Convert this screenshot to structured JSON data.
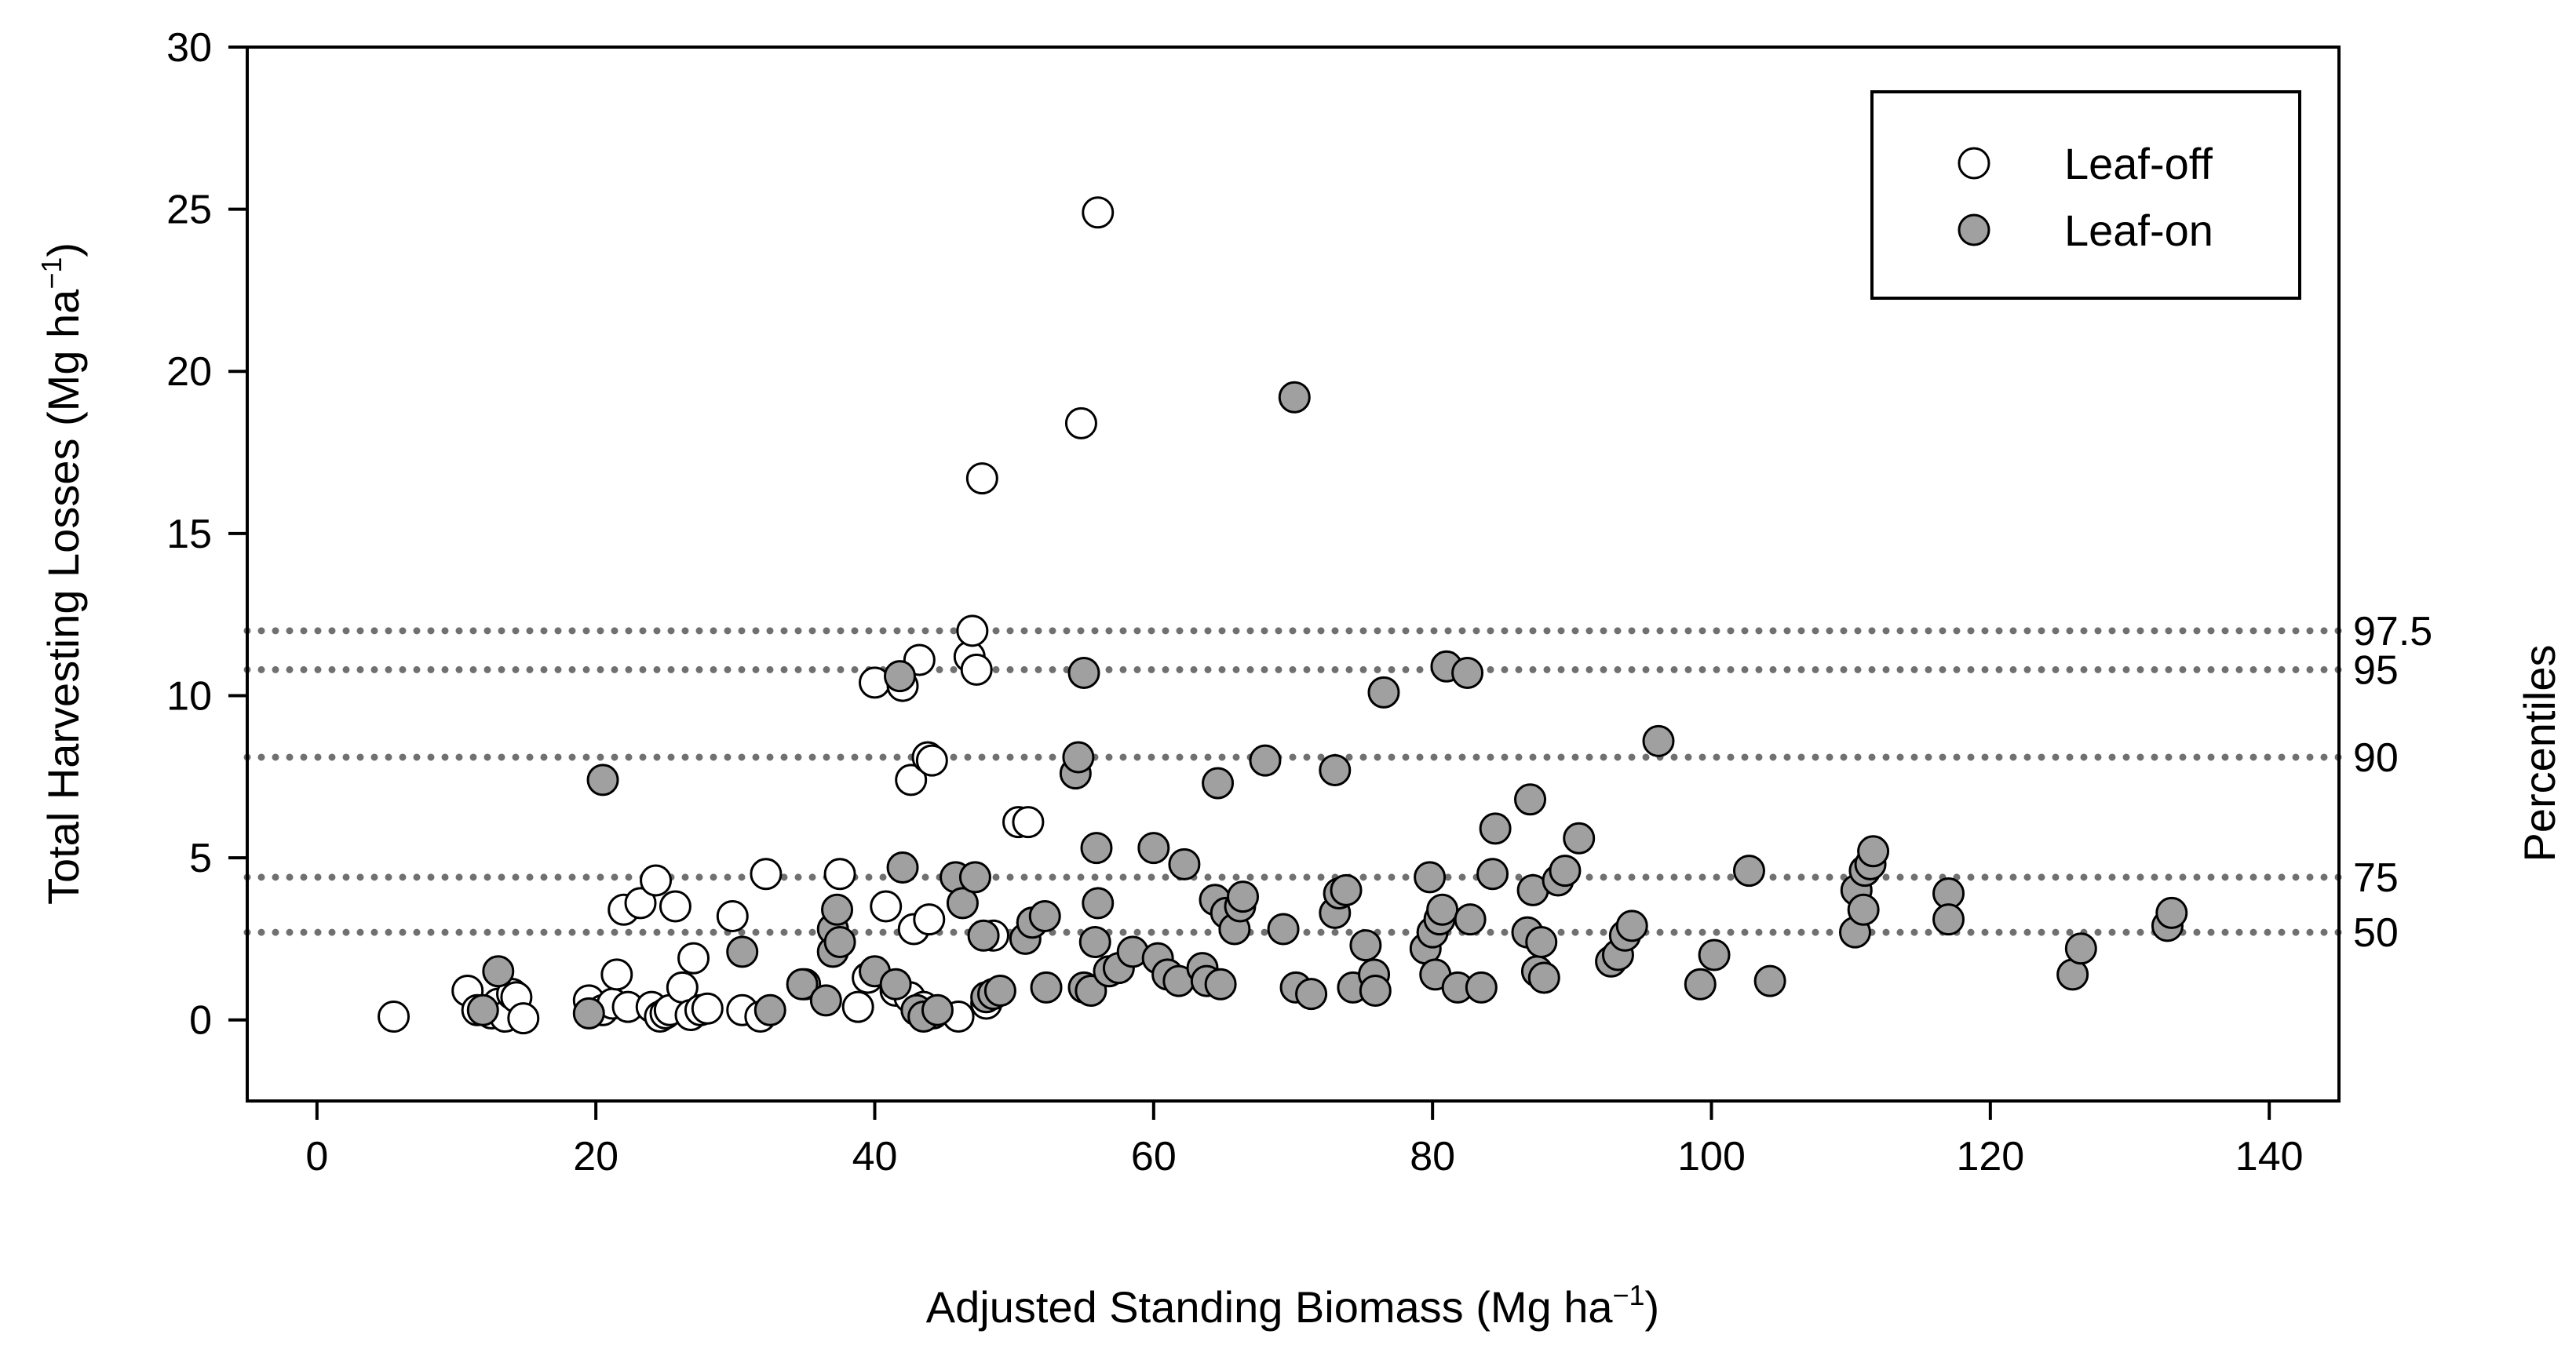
{
  "chart_data": {
    "type": "scatter",
    "title": "",
    "xlabel": "Adjusted Standing Biomass (Mg ha",
    "xlabel_sup": "−1",
    "xlabel_end": ")",
    "ylabel": "Total Harvesting Losses (Mg ha",
    "ylabel_sup": "−1",
    "ylabel_end": ")",
    "right_label": "Percentiles",
    "xlim": [
      -5,
      145
    ],
    "ylim": [
      -2.5,
      30
    ],
    "xticks": [
      0,
      20,
      40,
      60,
      80,
      100,
      120,
      140
    ],
    "yticks": [
      0,
      5,
      10,
      15,
      20,
      25,
      30
    ],
    "xtick_labels": [
      "0",
      "20",
      "40",
      "60",
      "80",
      "100",
      "120",
      "140"
    ],
    "ytick_labels": [
      "0",
      "5",
      "10",
      "15",
      "20",
      "25",
      "30"
    ],
    "legend_position": "top-right",
    "percentiles": [
      {
        "label": "97.5",
        "value": 12.0
      },
      {
        "label": "95",
        "value": 10.8
      },
      {
        "label": "90",
        "value": 8.1
      },
      {
        "label": "75",
        "value": 4.4
      },
      {
        "label": "50",
        "value": 2.7
      }
    ],
    "colors": {
      "leaf_off_fill": "#ffffff",
      "leaf_on_fill": "#a0a0a0",
      "marker_stroke": "#000000",
      "percentile_line": "#707070",
      "axis": "#000000"
    },
    "series": [
      {
        "name": "Leaf-off",
        "legend_label": "Leaf-off",
        "fill": "leaf_off_fill",
        "points": [
          [
            5.5,
            0.1
          ],
          [
            10.8,
            0.9
          ],
          [
            11.5,
            0.3
          ],
          [
            12.5,
            0.2
          ],
          [
            13.0,
            0.5
          ],
          [
            13.5,
            0.1
          ],
          [
            14.0,
            0.8
          ],
          [
            14.3,
            0.7
          ],
          [
            14.8,
            0.05
          ],
          [
            19.5,
            0.6
          ],
          [
            20.5,
            0.3
          ],
          [
            21.2,
            0.5
          ],
          [
            21.5,
            1.4
          ],
          [
            22.0,
            3.4
          ],
          [
            22.3,
            0.4
          ],
          [
            23.2,
            3.6
          ],
          [
            24.0,
            0.4
          ],
          [
            24.3,
            4.3
          ],
          [
            24.6,
            0.1
          ],
          [
            25.0,
            0.2
          ],
          [
            25.3,
            0.3
          ],
          [
            25.7,
            3.5
          ],
          [
            26.2,
            1.0
          ],
          [
            26.8,
            0.15
          ],
          [
            27.0,
            1.9
          ],
          [
            27.5,
            0.3
          ],
          [
            28.0,
            0.35
          ],
          [
            29.8,
            3.2
          ],
          [
            30.5,
            0.3
          ],
          [
            31.8,
            0.1
          ],
          [
            32.2,
            4.5
          ],
          [
            35.0,
            1.1
          ],
          [
            37.5,
            4.5
          ],
          [
            38.8,
            0.4
          ],
          [
            39.5,
            1.3
          ],
          [
            40.0,
            10.4
          ],
          [
            40.8,
            3.5
          ],
          [
            41.5,
            0.9
          ],
          [
            42.0,
            10.3
          ],
          [
            42.5,
            0.7
          ],
          [
            42.6,
            7.4
          ],
          [
            42.8,
            2.8
          ],
          [
            43.2,
            11.1
          ],
          [
            43.5,
            0.4
          ],
          [
            43.8,
            8.1
          ],
          [
            43.9,
            3.1
          ],
          [
            44.1,
            8.0
          ],
          [
            44.2,
            0.2
          ],
          [
            46.0,
            0.1
          ],
          [
            46.8,
            11.2
          ],
          [
            47.0,
            12.0
          ],
          [
            47.3,
            10.8
          ],
          [
            47.7,
            16.7
          ],
          [
            48.0,
            0.5
          ],
          [
            48.5,
            2.6
          ],
          [
            50.3,
            6.1
          ],
          [
            51.0,
            6.1
          ],
          [
            51.3,
            3.0
          ],
          [
            54.8,
            18.4
          ],
          [
            56.0,
            24.9
          ]
        ]
      },
      {
        "name": "Leaf-on",
        "legend_label": "Leaf-on",
        "fill": "leaf_on_fill",
        "points": [
          [
            11.9,
            0.3
          ],
          [
            13.0,
            1.5
          ],
          [
            19.5,
            0.2
          ],
          [
            20.5,
            7.4
          ],
          [
            30.5,
            2.1
          ],
          [
            32.5,
            0.3
          ],
          [
            34.8,
            1.1
          ],
          [
            36.5,
            0.6
          ],
          [
            37.0,
            2.1
          ],
          [
            37.0,
            2.8
          ],
          [
            37.3,
            3.4
          ],
          [
            37.5,
            2.4
          ],
          [
            40.0,
            1.5
          ],
          [
            41.5,
            1.1
          ],
          [
            41.8,
            10.6
          ],
          [
            42.0,
            4.7
          ],
          [
            43.0,
            0.3
          ],
          [
            43.5,
            0.1
          ],
          [
            44.5,
            0.3
          ],
          [
            45.8,
            4.4
          ],
          [
            46.3,
            3.6
          ],
          [
            47.2,
            4.4
          ],
          [
            47.8,
            2.6
          ],
          [
            48.0,
            0.7
          ],
          [
            48.5,
            0.8
          ],
          [
            49.0,
            0.9
          ],
          [
            50.8,
            2.5
          ],
          [
            51.3,
            3.0
          ],
          [
            52.2,
            3.2
          ],
          [
            52.3,
            1.0
          ],
          [
            54.4,
            7.6
          ],
          [
            54.6,
            8.1
          ],
          [
            55.0,
            10.7
          ],
          [
            55.0,
            1.0
          ],
          [
            55.5,
            0.9
          ],
          [
            55.8,
            2.4
          ],
          [
            55.9,
            5.3
          ],
          [
            56.0,
            3.6
          ],
          [
            56.8,
            1.5
          ],
          [
            57.5,
            1.6
          ],
          [
            58.5,
            2.1
          ],
          [
            60.0,
            5.3
          ],
          [
            60.3,
            1.9
          ],
          [
            61.0,
            1.4
          ],
          [
            61.8,
            1.2
          ],
          [
            62.2,
            4.8
          ],
          [
            63.5,
            1.6
          ],
          [
            63.8,
            1.2
          ],
          [
            64.4,
            3.7
          ],
          [
            64.6,
            7.3
          ],
          [
            64.8,
            1.1
          ],
          [
            65.2,
            3.3
          ],
          [
            65.8,
            2.8
          ],
          [
            66.2,
            3.5
          ],
          [
            66.4,
            3.8
          ],
          [
            68.0,
            8.0
          ],
          [
            69.3,
            2.8
          ],
          [
            70.1,
            19.2
          ],
          [
            70.2,
            1.0
          ],
          [
            71.3,
            0.8
          ],
          [
            73.0,
            7.7
          ],
          [
            73.0,
            3.3
          ],
          [
            73.3,
            3.9
          ],
          [
            73.8,
            4.0
          ],
          [
            74.3,
            1.0
          ],
          [
            75.2,
            2.3
          ],
          [
            75.8,
            1.4
          ],
          [
            75.9,
            0.9
          ],
          [
            76.5,
            10.1
          ],
          [
            79.5,
            2.2
          ],
          [
            79.8,
            4.4
          ],
          [
            80.0,
            2.7
          ],
          [
            80.2,
            1.4
          ],
          [
            80.5,
            3.1
          ],
          [
            80.7,
            3.4
          ],
          [
            81.0,
            10.9
          ],
          [
            81.8,
            1.0
          ],
          [
            82.5,
            10.7
          ],
          [
            82.7,
            3.1
          ],
          [
            83.5,
            1.0
          ],
          [
            84.3,
            4.5
          ],
          [
            84.5,
            5.9
          ],
          [
            86.8,
            2.7
          ],
          [
            87.0,
            6.8
          ],
          [
            87.2,
            4.0
          ],
          [
            87.5,
            1.5
          ],
          [
            87.8,
            2.4
          ],
          [
            88.0,
            1.3
          ],
          [
            89.0,
            4.3
          ],
          [
            89.5,
            4.6
          ],
          [
            90.5,
            5.6
          ],
          [
            92.8,
            1.8
          ],
          [
            93.3,
            2.0
          ],
          [
            93.8,
            2.6
          ],
          [
            94.3,
            2.9
          ],
          [
            96.2,
            8.6
          ],
          [
            99.2,
            1.1
          ],
          [
            100.2,
            2.0
          ],
          [
            102.7,
            4.6
          ],
          [
            104.2,
            1.2
          ],
          [
            110.3,
            2.7
          ],
          [
            110.4,
            4.0
          ],
          [
            110.9,
            3.4
          ],
          [
            111.0,
            4.6
          ],
          [
            111.4,
            4.8
          ],
          [
            111.6,
            5.2
          ],
          [
            117.0,
            3.9
          ],
          [
            117.0,
            3.1
          ],
          [
            125.9,
            1.4
          ],
          [
            126.5,
            2.2
          ],
          [
            132.7,
            2.9
          ],
          [
            133.0,
            3.3
          ]
        ]
      }
    ]
  }
}
